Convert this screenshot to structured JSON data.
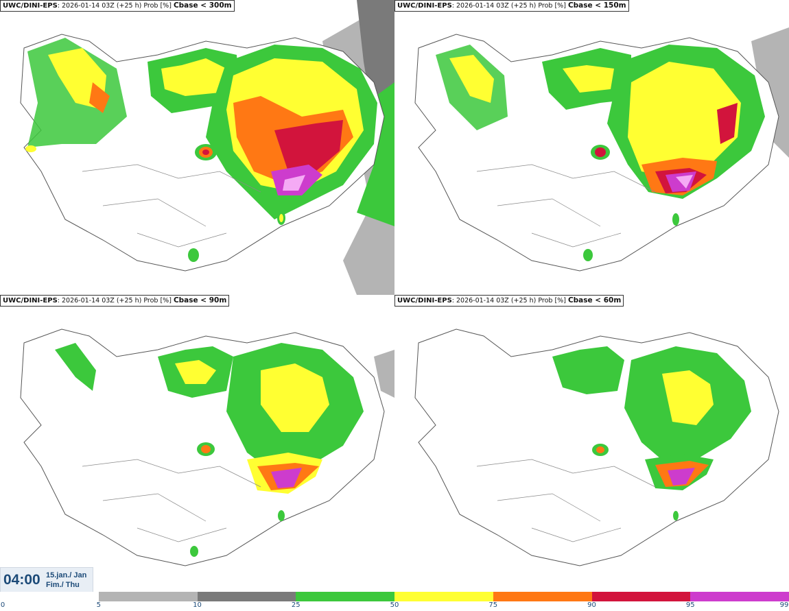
{
  "panels": [
    {
      "model": "UWC/DINI-EPS",
      "run": ": 2026-01-14 03Z (+25 h) Prob [%] ",
      "threshold": "Cbase < 300m"
    },
    {
      "model": "UWC/DINI-EPS",
      "run": ": 2026-01-14 03Z (+25 h) Prob [%] ",
      "threshold": "Cbase < 150m"
    },
    {
      "model": "UWC/DINI-EPS",
      "run": ": 2026-01-14 03Z (+25 h) Prob [%] ",
      "threshold": "Cbase < 90m"
    },
    {
      "model": "UWC/DINI-EPS",
      "run": ": 2026-01-14 03Z (+25 h) Prob [%] ",
      "threshold": "Cbase < 60m"
    }
  ],
  "valid_time": {
    "time": "04:00",
    "date_line1": "15.jan./ Jan",
    "date_line2": "Fim./ Thu"
  },
  "legend": {
    "ticks": [
      "0",
      "5",
      "10",
      "25",
      "50",
      "75",
      "90",
      "95",
      "99"
    ],
    "colors": [
      "#ffffff",
      "#b4b4b4",
      "#7a7a7a",
      "#3cc83c",
      "#ffff32",
      "#ff7814",
      "#d2143c",
      "#cd3ccd",
      "#f5aaf5"
    ]
  },
  "colors": {
    "accent": "#1c4a78",
    "coastline": "#555555"
  }
}
